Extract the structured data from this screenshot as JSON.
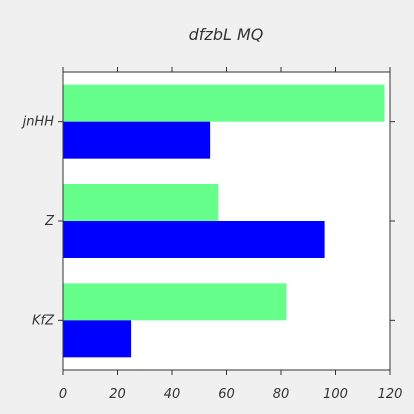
{
  "chart_data": {
    "type": "bar",
    "orientation": "horizontal",
    "title": "dfzbL MQ",
    "xlabel": "",
    "ylabel": "",
    "categories": [
      "jnHH",
      "Z",
      "KfZ"
    ],
    "series": [
      {
        "values": [
          118,
          57,
          82
        ],
        "color": "#66ff8c"
      },
      {
        "values": [
          54,
          96,
          25
        ],
        "color": "#0000ff"
      }
    ],
    "xlim": [
      0,
      120
    ],
    "xticks": [
      0,
      20,
      40,
      60,
      80,
      100,
      120
    ],
    "grid": false,
    "legend": "none",
    "background": "#ffffff",
    "figure_background": "#f0f0f0"
  }
}
